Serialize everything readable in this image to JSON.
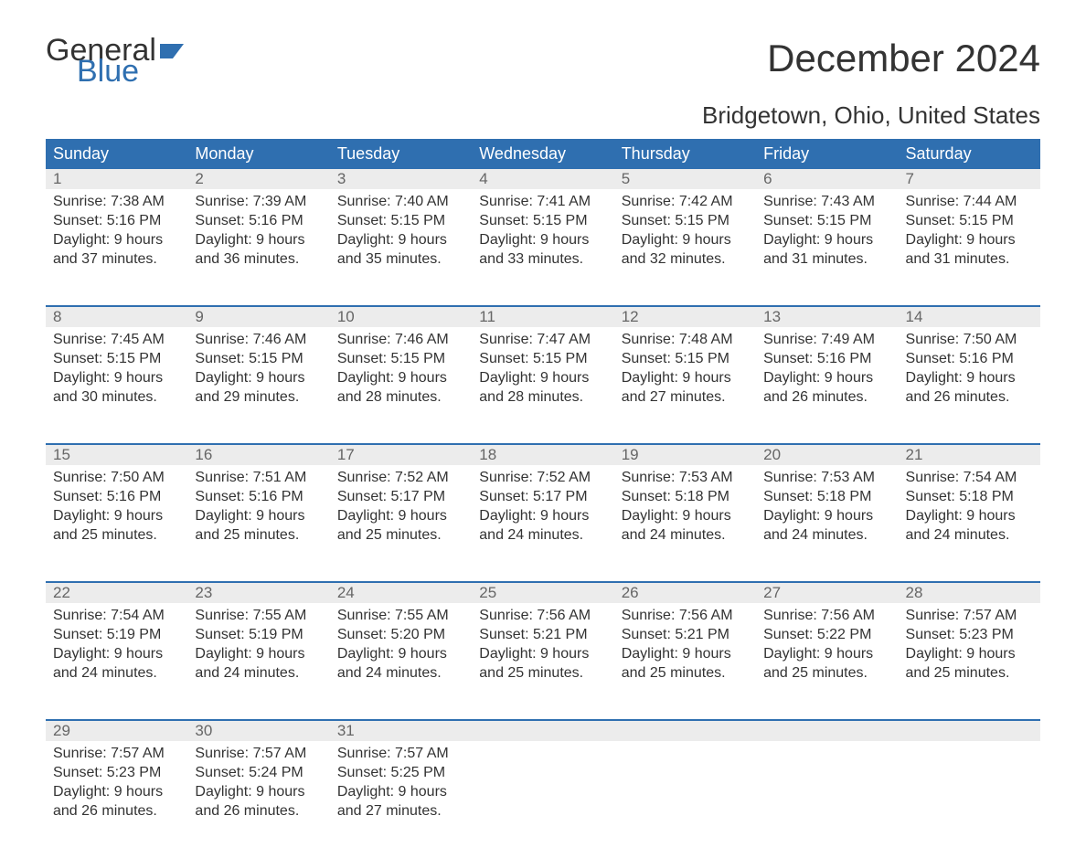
{
  "logo": {
    "general": "General",
    "blue": "Blue"
  },
  "title": "December 2024",
  "location": "Bridgetown, Ohio, United States",
  "colors": {
    "header_bg": "#2f6fb0",
    "header_text": "#ffffff",
    "daynum_bg": "#ececec",
    "daynum_text": "#666666",
    "body_text": "#333333",
    "accent": "#2f6fb0",
    "page_bg": "#ffffff"
  },
  "typography": {
    "title_size": 42,
    "location_size": 26,
    "header_size": 18,
    "body_size": 16
  },
  "days_of_week": [
    "Sunday",
    "Monday",
    "Tuesday",
    "Wednesday",
    "Thursday",
    "Friday",
    "Saturday"
  ],
  "weeks": [
    [
      {
        "n": "1",
        "sr": "Sunrise: 7:38 AM",
        "ss": "Sunset: 5:16 PM",
        "d1": "Daylight: 9 hours",
        "d2": "and 37 minutes."
      },
      {
        "n": "2",
        "sr": "Sunrise: 7:39 AM",
        "ss": "Sunset: 5:16 PM",
        "d1": "Daylight: 9 hours",
        "d2": "and 36 minutes."
      },
      {
        "n": "3",
        "sr": "Sunrise: 7:40 AM",
        "ss": "Sunset: 5:15 PM",
        "d1": "Daylight: 9 hours",
        "d2": "and 35 minutes."
      },
      {
        "n": "4",
        "sr": "Sunrise: 7:41 AM",
        "ss": "Sunset: 5:15 PM",
        "d1": "Daylight: 9 hours",
        "d2": "and 33 minutes."
      },
      {
        "n": "5",
        "sr": "Sunrise: 7:42 AM",
        "ss": "Sunset: 5:15 PM",
        "d1": "Daylight: 9 hours",
        "d2": "and 32 minutes."
      },
      {
        "n": "6",
        "sr": "Sunrise: 7:43 AM",
        "ss": "Sunset: 5:15 PM",
        "d1": "Daylight: 9 hours",
        "d2": "and 31 minutes."
      },
      {
        "n": "7",
        "sr": "Sunrise: 7:44 AM",
        "ss": "Sunset: 5:15 PM",
        "d1": "Daylight: 9 hours",
        "d2": "and 31 minutes."
      }
    ],
    [
      {
        "n": "8",
        "sr": "Sunrise: 7:45 AM",
        "ss": "Sunset: 5:15 PM",
        "d1": "Daylight: 9 hours",
        "d2": "and 30 minutes."
      },
      {
        "n": "9",
        "sr": "Sunrise: 7:46 AM",
        "ss": "Sunset: 5:15 PM",
        "d1": "Daylight: 9 hours",
        "d2": "and 29 minutes."
      },
      {
        "n": "10",
        "sr": "Sunrise: 7:46 AM",
        "ss": "Sunset: 5:15 PM",
        "d1": "Daylight: 9 hours",
        "d2": "and 28 minutes."
      },
      {
        "n": "11",
        "sr": "Sunrise: 7:47 AM",
        "ss": "Sunset: 5:15 PM",
        "d1": "Daylight: 9 hours",
        "d2": "and 28 minutes."
      },
      {
        "n": "12",
        "sr": "Sunrise: 7:48 AM",
        "ss": "Sunset: 5:15 PM",
        "d1": "Daylight: 9 hours",
        "d2": "and 27 minutes."
      },
      {
        "n": "13",
        "sr": "Sunrise: 7:49 AM",
        "ss": "Sunset: 5:16 PM",
        "d1": "Daylight: 9 hours",
        "d2": "and 26 minutes."
      },
      {
        "n": "14",
        "sr": "Sunrise: 7:50 AM",
        "ss": "Sunset: 5:16 PM",
        "d1": "Daylight: 9 hours",
        "d2": "and 26 minutes."
      }
    ],
    [
      {
        "n": "15",
        "sr": "Sunrise: 7:50 AM",
        "ss": "Sunset: 5:16 PM",
        "d1": "Daylight: 9 hours",
        "d2": "and 25 minutes."
      },
      {
        "n": "16",
        "sr": "Sunrise: 7:51 AM",
        "ss": "Sunset: 5:16 PM",
        "d1": "Daylight: 9 hours",
        "d2": "and 25 minutes."
      },
      {
        "n": "17",
        "sr": "Sunrise: 7:52 AM",
        "ss": "Sunset: 5:17 PM",
        "d1": "Daylight: 9 hours",
        "d2": "and 25 minutes."
      },
      {
        "n": "18",
        "sr": "Sunrise: 7:52 AM",
        "ss": "Sunset: 5:17 PM",
        "d1": "Daylight: 9 hours",
        "d2": "and 24 minutes."
      },
      {
        "n": "19",
        "sr": "Sunrise: 7:53 AM",
        "ss": "Sunset: 5:18 PM",
        "d1": "Daylight: 9 hours",
        "d2": "and 24 minutes."
      },
      {
        "n": "20",
        "sr": "Sunrise: 7:53 AM",
        "ss": "Sunset: 5:18 PM",
        "d1": "Daylight: 9 hours",
        "d2": "and 24 minutes."
      },
      {
        "n": "21",
        "sr": "Sunrise: 7:54 AM",
        "ss": "Sunset: 5:18 PM",
        "d1": "Daylight: 9 hours",
        "d2": "and 24 minutes."
      }
    ],
    [
      {
        "n": "22",
        "sr": "Sunrise: 7:54 AM",
        "ss": "Sunset: 5:19 PM",
        "d1": "Daylight: 9 hours",
        "d2": "and 24 minutes."
      },
      {
        "n": "23",
        "sr": "Sunrise: 7:55 AM",
        "ss": "Sunset: 5:19 PM",
        "d1": "Daylight: 9 hours",
        "d2": "and 24 minutes."
      },
      {
        "n": "24",
        "sr": "Sunrise: 7:55 AM",
        "ss": "Sunset: 5:20 PM",
        "d1": "Daylight: 9 hours",
        "d2": "and 24 minutes."
      },
      {
        "n": "25",
        "sr": "Sunrise: 7:56 AM",
        "ss": "Sunset: 5:21 PM",
        "d1": "Daylight: 9 hours",
        "d2": "and 25 minutes."
      },
      {
        "n": "26",
        "sr": "Sunrise: 7:56 AM",
        "ss": "Sunset: 5:21 PM",
        "d1": "Daylight: 9 hours",
        "d2": "and 25 minutes."
      },
      {
        "n": "27",
        "sr": "Sunrise: 7:56 AM",
        "ss": "Sunset: 5:22 PM",
        "d1": "Daylight: 9 hours",
        "d2": "and 25 minutes."
      },
      {
        "n": "28",
        "sr": "Sunrise: 7:57 AM",
        "ss": "Sunset: 5:23 PM",
        "d1": "Daylight: 9 hours",
        "d2": "and 25 minutes."
      }
    ],
    [
      {
        "n": "29",
        "sr": "Sunrise: 7:57 AM",
        "ss": "Sunset: 5:23 PM",
        "d1": "Daylight: 9 hours",
        "d2": "and 26 minutes."
      },
      {
        "n": "30",
        "sr": "Sunrise: 7:57 AM",
        "ss": "Sunset: 5:24 PM",
        "d1": "Daylight: 9 hours",
        "d2": "and 26 minutes."
      },
      {
        "n": "31",
        "sr": "Sunrise: 7:57 AM",
        "ss": "Sunset: 5:25 PM",
        "d1": "Daylight: 9 hours",
        "d2": "and 27 minutes."
      },
      null,
      null,
      null,
      null
    ]
  ]
}
